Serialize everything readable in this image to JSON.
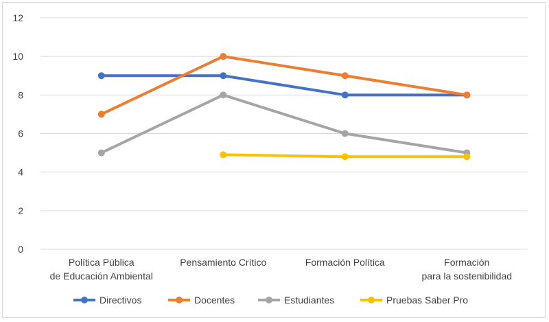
{
  "chart_data": {
    "type": "line",
    "title": "",
    "xlabel": "",
    "ylabel": "",
    "ylim": [
      0,
      12
    ],
    "yticks": [
      0,
      2,
      4,
      6,
      8,
      10,
      12
    ],
    "grid": "horizontal",
    "legend_position": "bottom",
    "categories": [
      [
        "Política Pública",
        "de Educación Ambiental"
      ],
      [
        "Pensamiento Crítico"
      ],
      [
        "Formación Política"
      ],
      [
        "Formación",
        "para la sostenibilidad"
      ]
    ],
    "series": [
      {
        "name": "Directivos",
        "color": "#4472c4",
        "values": [
          9,
          9,
          8,
          8
        ]
      },
      {
        "name": "Docentes",
        "color": "#ed7d31",
        "values": [
          7,
          10,
          9,
          8
        ]
      },
      {
        "name": "Estudiantes",
        "color": "#a5a5a5",
        "values": [
          5,
          8,
          6,
          5
        ]
      },
      {
        "name": "Pruebas Saber Pro",
        "color": "#ffc000",
        "values": [
          null,
          4.9,
          4.8,
          4.8
        ]
      }
    ]
  }
}
